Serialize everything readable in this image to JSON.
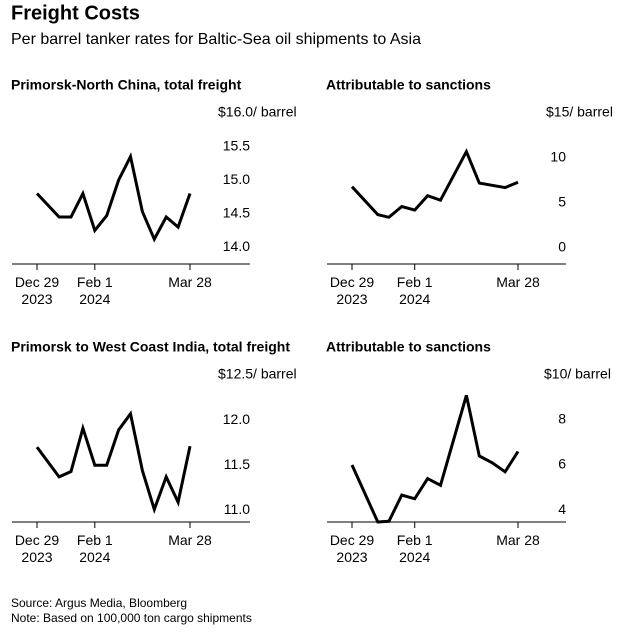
{
  "title": "Freight Costs",
  "subtitle": "Per barrel tanker rates for Baltic-Sea oil shipments to Asia",
  "source": "Source: Argus Media, Bloomberg",
  "note": "Note: Based on 100,000 ton cargo shipments",
  "chart_data": [
    {
      "type": "line",
      "title": "Primorsk-North China, total freight",
      "color": "#000000",
      "x": [
        "2023-12-29",
        "2024-01-11",
        "2024-01-18",
        "2024-01-25",
        "2024-02-01",
        "2024-02-08",
        "2024-02-15",
        "2024-02-22",
        "2024-02-29",
        "2024-03-07",
        "2024-03-14",
        "2024-03-21",
        "2024-03-28"
      ],
      "values": [
        14.8,
        14.45,
        14.45,
        14.8,
        14.25,
        14.47,
        15.0,
        15.35,
        14.53,
        14.12,
        14.45,
        14.3,
        14.8
      ],
      "ylim": [
        13.75,
        16.0
      ],
      "yticks": [
        {
          "value": 14.0,
          "label": "14.0"
        },
        14.5,
        {
          "value": 15.0,
          "label": "15.0"
        },
        15.5,
        {
          "value": 16.0,
          "label": "$16.0/ barrel"
        }
      ],
      "xticks": [
        {
          "value": "2023-12-29",
          "label": "Dec 29\n2023"
        },
        {
          "value": "2024-02-01",
          "label": "Feb 1\n2024"
        },
        {
          "value": "2024-03-28",
          "label": "Mar 28"
        }
      ]
    },
    {
      "type": "line",
      "title": "Attributable to sanctions",
      "color": "#000000",
      "x": [
        "2023-12-29",
        "2024-01-12",
        "2024-01-18",
        "2024-01-25",
        "2024-02-01",
        "2024-02-08",
        "2024-02-15",
        "2024-02-29",
        "2024-03-07",
        "2024-03-21",
        "2024-03-28"
      ],
      "values": [
        6.8,
        3.7,
        3.4,
        4.6,
        4.2,
        5.8,
        5.3,
        10.7,
        7.2,
        6.7,
        7.3
      ],
      "ylim": [
        -1.8,
        15
      ],
      "yticks": [
        0,
        5,
        10,
        {
          "value": 15,
          "label": "$15/ barrel"
        }
      ],
      "xticks": [
        {
          "value": "2023-12-29",
          "label": "Dec 29\n2023"
        },
        {
          "value": "2024-02-01",
          "label": "Feb 1\n2024"
        },
        {
          "value": "2024-03-28",
          "label": "Mar 28"
        }
      ]
    },
    {
      "type": "line",
      "title": "Primorsk to West Coast India, total freight",
      "color": "#000000",
      "x": [
        "2023-12-29",
        "2024-01-11",
        "2024-01-18",
        "2024-01-25",
        "2024-02-01",
        "2024-02-08",
        "2024-02-15",
        "2024-02-22",
        "2024-02-29",
        "2024-03-07",
        "2024-03-14",
        "2024-03-21",
        "2024-03-28"
      ],
      "values": [
        11.7,
        11.37,
        11.43,
        11.91,
        11.5,
        11.5,
        11.89,
        12.07,
        11.44,
        11.01,
        11.37,
        11.09,
        11.71
      ],
      "ylim": [
        10.87,
        12.5
      ],
      "yticks": [
        {
          "value": 11.0,
          "label": "11.0"
        },
        11.5,
        {
          "value": 12.0,
          "label": "12.0"
        },
        {
          "value": 12.5,
          "label": "$12.5/ barrel"
        }
      ],
      "xticks": [
        {
          "value": "2023-12-29",
          "label": "Dec 29\n2023"
        },
        {
          "value": "2024-02-01",
          "label": "Feb 1\n2024"
        },
        {
          "value": "2024-03-28",
          "label": "Mar 28"
        }
      ]
    },
    {
      "type": "line",
      "title": "Attributable to sanctions",
      "color": "#000000",
      "x": [
        "2023-12-29",
        "2024-01-12",
        "2024-01-18",
        "2024-01-25",
        "2024-02-01",
        "2024-02-08",
        "2024-02-15",
        "2024-02-29",
        "2024-03-07",
        "2024-03-14",
        "2024-03-21",
        "2024-03-28"
      ],
      "values": [
        6.0,
        3.47,
        3.5,
        4.67,
        4.5,
        5.4,
        5.1,
        9.1,
        6.4,
        6.1,
        5.7,
        6.6
      ],
      "ylim": [
        3.47,
        10
      ],
      "yticks": [
        4,
        6,
        8,
        {
          "value": 10,
          "label": "$10/ barrel"
        }
      ],
      "xticks": [
        {
          "value": "2023-12-29",
          "label": "Dec 29\n2023"
        },
        {
          "value": "2024-02-01",
          "label": "Feb 1\n2024"
        },
        {
          "value": "2024-03-28",
          "label": "Mar 28"
        }
      ]
    }
  ]
}
